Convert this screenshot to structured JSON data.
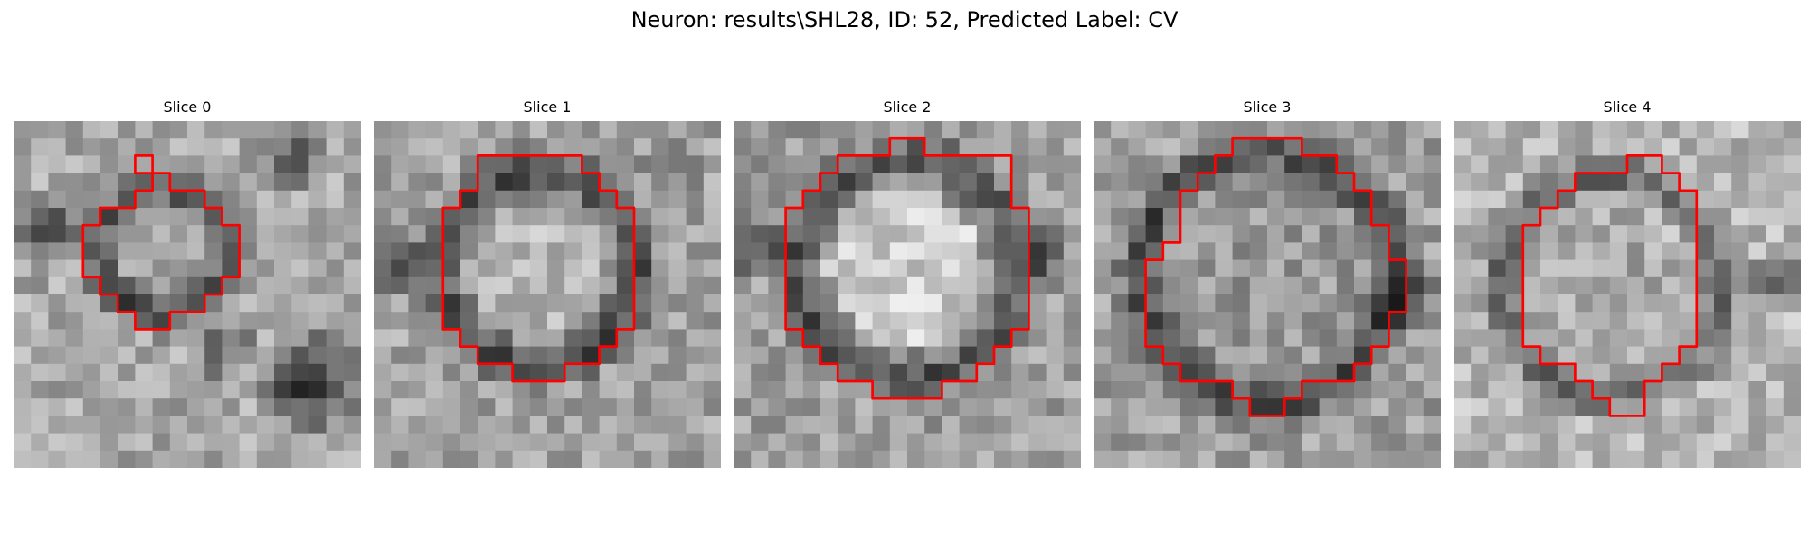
{
  "figure": {
    "title": "Neuron: results\\SHL28, ID: 52, Predicted Label: CV"
  },
  "contour_color": "#ff0000",
  "grid_size": 20,
  "slices": [
    {
      "title": "Slice 0",
      "contour": [
        [
          8,
          3
        ],
        [
          9,
          3
        ],
        [
          9,
          4
        ],
        [
          11,
          4
        ],
        [
          11,
          5
        ],
        [
          12,
          5
        ],
        [
          12,
          6
        ],
        [
          13,
          6
        ],
        [
          13,
          9
        ],
        [
          12,
          9
        ],
        [
          12,
          10
        ],
        [
          11,
          10
        ],
        [
          11,
          11
        ],
        [
          9,
          11
        ],
        [
          9,
          12
        ],
        [
          7,
          12
        ],
        [
          7,
          11
        ],
        [
          6,
          11
        ],
        [
          6,
          10
        ],
        [
          5,
          10
        ],
        [
          5,
          9
        ],
        [
          4,
          9
        ],
        [
          4,
          6
        ],
        [
          5,
          6
        ],
        [
          5,
          5
        ],
        [
          7,
          5
        ],
        [
          7,
          4
        ],
        [
          8,
          4
        ]
      ],
      "extra_contour": [
        [
          7,
          2
        ],
        [
          8,
          2
        ],
        [
          8,
          3
        ],
        [
          7,
          3
        ]
      ]
    },
    {
      "title": "Slice 1",
      "contour": [
        [
          6,
          2
        ],
        [
          12,
          2
        ],
        [
          12,
          3
        ],
        [
          13,
          3
        ],
        [
          13,
          4
        ],
        [
          14,
          4
        ],
        [
          14,
          5
        ],
        [
          15,
          5
        ],
        [
          15,
          12
        ],
        [
          14,
          12
        ],
        [
          14,
          13
        ],
        [
          13,
          13
        ],
        [
          13,
          14
        ],
        [
          11,
          14
        ],
        [
          11,
          15
        ],
        [
          8,
          15
        ],
        [
          8,
          14
        ],
        [
          6,
          14
        ],
        [
          6,
          13
        ],
        [
          5,
          13
        ],
        [
          5,
          12
        ],
        [
          4,
          12
        ],
        [
          4,
          5
        ],
        [
          5,
          5
        ],
        [
          5,
          4
        ],
        [
          6,
          4
        ]
      ]
    },
    {
      "title": "Slice 2",
      "contour": [
        [
          9,
          1
        ],
        [
          11,
          1
        ],
        [
          11,
          2
        ],
        [
          16,
          2
        ],
        [
          16,
          5
        ],
        [
          17,
          5
        ],
        [
          17,
          12
        ],
        [
          16,
          12
        ],
        [
          16,
          13
        ],
        [
          15,
          13
        ],
        [
          15,
          14
        ],
        [
          14,
          14
        ],
        [
          14,
          15
        ],
        [
          12,
          15
        ],
        [
          12,
          16
        ],
        [
          8,
          16
        ],
        [
          8,
          15
        ],
        [
          6,
          15
        ],
        [
          6,
          14
        ],
        [
          5,
          14
        ],
        [
          5,
          13
        ],
        [
          4,
          13
        ],
        [
          4,
          12
        ],
        [
          3,
          12
        ],
        [
          3,
          5
        ],
        [
          4,
          5
        ],
        [
          4,
          4
        ],
        [
          5,
          4
        ],
        [
          5,
          3
        ],
        [
          6,
          3
        ],
        [
          6,
          2
        ],
        [
          9,
          2
        ]
      ]
    },
    {
      "title": "Slice 3",
      "contour": [
        [
          8,
          1
        ],
        [
          12,
          1
        ],
        [
          12,
          2
        ],
        [
          14,
          2
        ],
        [
          14,
          3
        ],
        [
          15,
          3
        ],
        [
          15,
          4
        ],
        [
          16,
          4
        ],
        [
          16,
          6
        ],
        [
          17,
          6
        ],
        [
          17,
          8
        ],
        [
          18,
          8
        ],
        [
          18,
          11
        ],
        [
          17,
          11
        ],
        [
          17,
          13
        ],
        [
          16,
          13
        ],
        [
          16,
          14
        ],
        [
          15,
          14
        ],
        [
          15,
          15
        ],
        [
          12,
          15
        ],
        [
          12,
          16
        ],
        [
          11,
          16
        ],
        [
          11,
          17
        ],
        [
          9,
          17
        ],
        [
          9,
          16
        ],
        [
          8,
          16
        ],
        [
          8,
          15
        ],
        [
          5,
          15
        ],
        [
          5,
          14
        ],
        [
          4,
          14
        ],
        [
          4,
          13
        ],
        [
          3,
          13
        ],
        [
          3,
          8
        ],
        [
          4,
          8
        ],
        [
          4,
          7
        ],
        [
          5,
          7
        ],
        [
          5,
          4
        ],
        [
          6,
          4
        ],
        [
          6,
          3
        ],
        [
          7,
          3
        ],
        [
          7,
          2
        ],
        [
          8,
          2
        ]
      ]
    },
    {
      "title": "Slice 4",
      "contour": [
        [
          10,
          2
        ],
        [
          12,
          2
        ],
        [
          12,
          3
        ],
        [
          13,
          3
        ],
        [
          13,
          4
        ],
        [
          14,
          4
        ],
        [
          14,
          13
        ],
        [
          13,
          13
        ],
        [
          13,
          14
        ],
        [
          12,
          14
        ],
        [
          12,
          15
        ],
        [
          11,
          15
        ],
        [
          11,
          17
        ],
        [
          9,
          17
        ],
        [
          9,
          16
        ],
        [
          8,
          16
        ],
        [
          8,
          15
        ],
        [
          7,
          15
        ],
        [
          7,
          14
        ],
        [
          5,
          14
        ],
        [
          5,
          13
        ],
        [
          4,
          13
        ],
        [
          4,
          6
        ],
        [
          5,
          6
        ],
        [
          5,
          5
        ],
        [
          6,
          5
        ],
        [
          6,
          4
        ],
        [
          7,
          4
        ],
        [
          7,
          3
        ],
        [
          10,
          3
        ]
      ]
    }
  ]
}
